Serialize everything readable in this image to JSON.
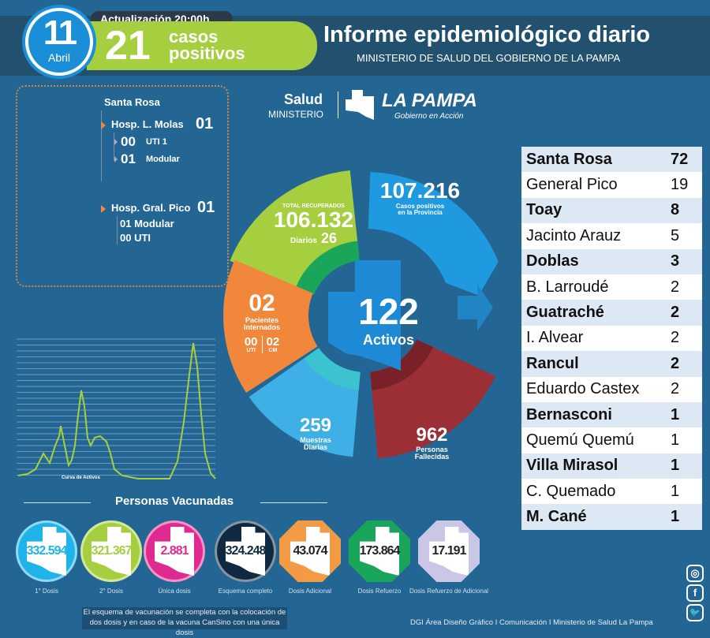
{
  "header": {
    "day": "11",
    "month": "Abril",
    "update_label": "Actualización 20:00h",
    "new_cases": "21",
    "new_cases_label_1": "casos",
    "new_cases_label_2": "positivos",
    "title": "Informe epidemiológico diario",
    "subtitle": "MINISTERIO DE SALUD DEL GOBIERNO DE LA PAMPA"
  },
  "hospitals": {
    "city": "Santa Rosa",
    "molas": {
      "name": "Hosp. L. Molas",
      "total": "01",
      "uti_n": "00",
      "uti_label": "UTI 1",
      "mod_n": "01",
      "mod_label": "Modular"
    },
    "pico": {
      "name": "Hosp. Gral. Pico",
      "total": "01",
      "mod": "01 Modular",
      "uti": "00 UTI"
    }
  },
  "logo": {
    "salud": "Salud",
    "ministerio": "MINISTERIO",
    "brand": "LA PAMPA",
    "tagline": "Gobierno en Acción"
  },
  "donut": {
    "recovered_label": "TOTAL RECUPERADOS",
    "recovered": "106.132",
    "daily_label": "Diarios",
    "daily": "26",
    "positives": "107.216",
    "positives_label_1": "Casos positivos",
    "positives_label_2": "en la Provincia",
    "active": "122",
    "active_label": "Activos",
    "hospitalized": "02",
    "hospitalized_label_1": "Pacientes",
    "hospitalized_label_2": "Internados",
    "uti": "00",
    "uti_label": "UTI",
    "cm": "02",
    "cm_label": "CM",
    "samples": "259",
    "samples_label_1": "Muestras",
    "samples_label_2": "Diarias",
    "deaths": "962",
    "deaths_label_1": "Personas",
    "deaths_label_2": "Fallecidas"
  },
  "curve": {
    "label": "Curva de Activos"
  },
  "localities": [
    [
      "Santa Rosa",
      "72"
    ],
    [
      "General Pico",
      "19"
    ],
    [
      "Toay",
      "8"
    ],
    [
      "Jacinto Arauz",
      "5"
    ],
    [
      "Doblas",
      "3"
    ],
    [
      "B.  Larroudé",
      "2"
    ],
    [
      "Guatraché",
      "2"
    ],
    [
      "I. Alvear",
      "2"
    ],
    [
      "Rancul",
      "2"
    ],
    [
      "Eduardo Castex",
      "2"
    ],
    [
      "Bernasconi",
      "1"
    ],
    [
      "Quemú Quemú",
      "1"
    ],
    [
      "Villa Mirasol",
      "1"
    ],
    [
      "C. Quemado",
      "1"
    ],
    [
      "M. Cané",
      "1"
    ]
  ],
  "vaccines": {
    "title": "Personas Vacunadas",
    "items": [
      {
        "value": "332.594",
        "label": "1° Dosis",
        "color": "#1fb3ea",
        "text": "#1fb3ea"
      },
      {
        "value": "321.367",
        "label": "2° Dosis",
        "color": "#a6cf3f",
        "text": "#a6cf3f"
      },
      {
        "value": "2.881",
        "label": "Única dosis",
        "color": "#e02a8f",
        "text": "#e02a8f"
      },
      {
        "value": "324.248",
        "label": "Esquema completo",
        "color": "#0f2a40",
        "text": "#0f2a40"
      },
      {
        "value": "43.074",
        "label": "Dosis Adicional",
        "color": "#f39a45",
        "text": "#222"
      },
      {
        "value": "173.864",
        "label": "Dosis Refuerzo",
        "color": "#1aa65a",
        "text": "#222"
      },
      {
        "value": "17.191",
        "label": "Dosis Refuerzo de Adicional",
        "color": "#c9c6e6",
        "text": "#222"
      }
    ]
  },
  "footer": {
    "note_1": "El esquema de vacunación se completa con la colocación de",
    "note_2": "dos dosis y en caso de la vacuna CanSino con una única dosis",
    "credits": "DGI Área Diseño Gráfico  I Comunicación I Ministerio de Salud La Pampa"
  },
  "social": [
    "instagram",
    "facebook",
    "twitter"
  ]
}
